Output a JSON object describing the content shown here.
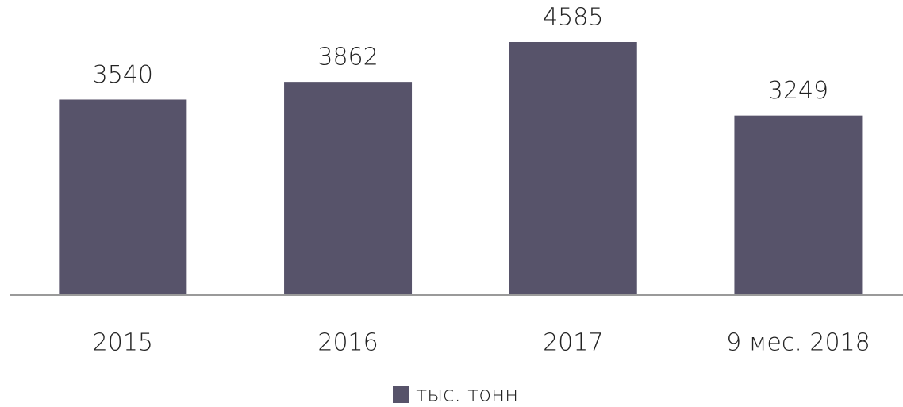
{
  "chart_data": {
    "type": "bar",
    "categories": [
      "2015",
      "2016",
      "2017",
      "9 мес. 2018"
    ],
    "series": [
      {
        "name": "тыс. тонн",
        "color": "#57536a",
        "values": [
          3540,
          3862,
          4585,
          3249
        ]
      }
    ]
  }
}
